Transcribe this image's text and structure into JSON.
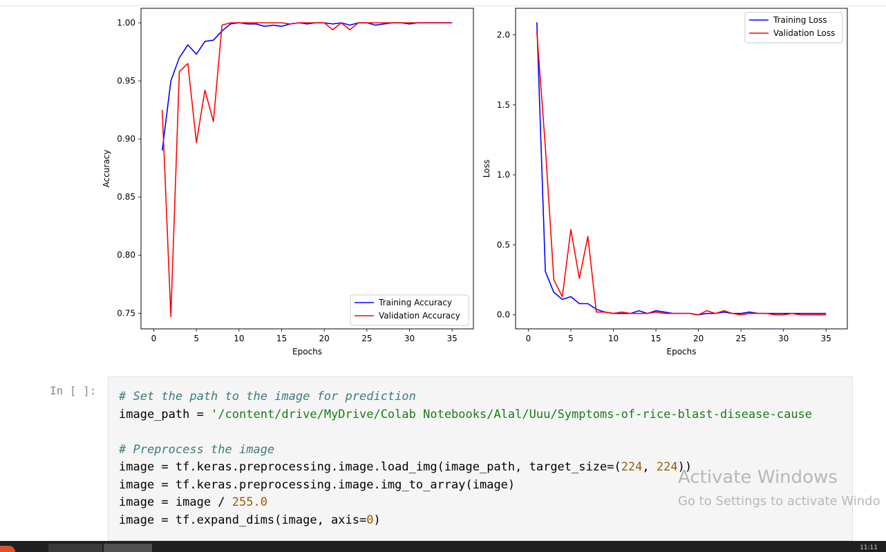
{
  "chart_data": [
    {
      "type": "line",
      "title": "",
      "xlabel": "Epochs",
      "ylabel": "Accuracy",
      "xlim": [
        -1.5,
        37.5
      ],
      "ylim": [
        0.7365,
        1.0125
      ],
      "xticks": [
        0,
        5,
        10,
        15,
        20,
        25,
        30,
        35
      ],
      "yticks": [
        0.75,
        0.8,
        0.85,
        0.9,
        0.95,
        1.0
      ],
      "ytick_labels": [
        "0.75",
        "0.80",
        "0.85",
        "0.90",
        "0.95",
        "1.00"
      ],
      "legend_position": "lower-right",
      "x": [
        1,
        2,
        3,
        4,
        5,
        6,
        7,
        8,
        9,
        10,
        11,
        12,
        13,
        14,
        15,
        16,
        17,
        18,
        19,
        20,
        21,
        22,
        23,
        24,
        25,
        26,
        27,
        28,
        29,
        30,
        31,
        32,
        33,
        34,
        35
      ],
      "series": [
        {
          "name": "Training Accuracy",
          "color": "#0000ff",
          "values": [
            0.89,
            0.95,
            0.97,
            0.981,
            0.973,
            0.984,
            0.985,
            0.993,
            0.999,
            1.0,
            0.999,
            0.999,
            0.997,
            0.998,
            0.997,
            0.999,
            1.0,
            0.999,
            1.0,
            1.0,
            0.999,
            1.0,
            0.998,
            1.0,
            1.0,
            0.998,
            0.999,
            1.0,
            1.0,
            0.999,
            1.0,
            1.0,
            1.0,
            1.0,
            1.0
          ]
        },
        {
          "name": "Validation Accuracy",
          "color": "#ff0000",
          "values": [
            0.925,
            0.747,
            0.958,
            0.965,
            0.897,
            0.942,
            0.915,
            0.998,
            1.0,
            1.0,
            1.0,
            1.0,
            1.0,
            1.0,
            1.0,
            0.999,
            1.0,
            1.0,
            1.0,
            1.0,
            0.994,
            1.0,
            0.994,
            1.0,
            1.0,
            1.0,
            1.0,
            1.0,
            1.0,
            1.0,
            1.0,
            1.0,
            1.0,
            1.0,
            1.0
          ]
        }
      ]
    },
    {
      "type": "line",
      "title": "",
      "xlabel": "Epochs",
      "ylabel": "Loss",
      "xlim": [
        -1.5,
        37.5
      ],
      "ylim": [
        -0.1,
        2.19
      ],
      "xticks": [
        0,
        5,
        10,
        15,
        20,
        25,
        30,
        35
      ],
      "yticks": [
        0.0,
        0.5,
        1.0,
        1.5,
        2.0
      ],
      "ytick_labels": [
        "0.0",
        "0.5",
        "1.0",
        "1.5",
        "2.0"
      ],
      "legend_position": "upper-right",
      "x": [
        1,
        2,
        3,
        4,
        5,
        6,
        7,
        8,
        9,
        10,
        11,
        12,
        13,
        14,
        15,
        16,
        17,
        18,
        19,
        20,
        21,
        22,
        23,
        24,
        25,
        26,
        27,
        28,
        29,
        30,
        31,
        32,
        33,
        34,
        35
      ],
      "series": [
        {
          "name": "Training Loss",
          "color": "#0000ff",
          "values": [
            2.09,
            0.31,
            0.16,
            0.11,
            0.13,
            0.08,
            0.08,
            0.04,
            0.02,
            0.01,
            0.01,
            0.01,
            0.03,
            0.01,
            0.03,
            0.02,
            0.01,
            0.01,
            0.01,
            0.0,
            0.01,
            0.01,
            0.02,
            0.01,
            0.01,
            0.02,
            0.01,
            0.01,
            0.01,
            0.01,
            0.01,
            0.01,
            0.01,
            0.01,
            0.01
          ]
        },
        {
          "name": "Validation Loss",
          "color": "#ff0000",
          "values": [
            2.02,
            1.2,
            0.25,
            0.13,
            0.61,
            0.26,
            0.56,
            0.02,
            0.02,
            0.01,
            0.02,
            0.01,
            0.01,
            0.01,
            0.02,
            0.01,
            0.01,
            0.01,
            0.01,
            0.0,
            0.03,
            0.01,
            0.03,
            0.01,
            0.0,
            0.01,
            0.01,
            0.01,
            0.0,
            0.0,
            0.01,
            0.0,
            0.0,
            0.0,
            0.0
          ]
        }
      ]
    }
  ],
  "cell": {
    "prompt": "In [ ]:",
    "lines": [
      {
        "parts": [
          {
            "t": "# Set the path to the image for prediction",
            "c": "cm"
          }
        ]
      },
      {
        "parts": [
          {
            "t": "image_path = ",
            "c": ""
          },
          {
            "t": "'/content/drive/MyDrive/Colab Notebooks/Alal/Uuu/Symptoms-of-rice-blast-disease-cause",
            "c": "st"
          }
        ]
      },
      {
        "parts": [
          {
            "t": "",
            "c": ""
          }
        ]
      },
      {
        "parts": [
          {
            "t": "# Preprocess the image",
            "c": "cm"
          }
        ]
      },
      {
        "parts": [
          {
            "t": "image = tf.keras.preprocessing.image.load_img(image_path, target_size=(",
            "c": ""
          },
          {
            "t": "224",
            "c": "nm"
          },
          {
            "t": ", ",
            "c": ""
          },
          {
            "t": "224",
            "c": "nm"
          },
          {
            "t": "))",
            "c": ""
          }
        ]
      },
      {
        "parts": [
          {
            "t": "image = tf.keras.preprocessing.image.img_to_array(image)",
            "c": ""
          }
        ]
      },
      {
        "parts": [
          {
            "t": "image = image / ",
            "c": ""
          },
          {
            "t": "255.0",
            "c": "nm"
          }
        ]
      },
      {
        "parts": [
          {
            "t": "image = tf.expand_dims(image, axis=",
            "c": ""
          },
          {
            "t": "0",
            "c": "nm"
          },
          {
            "t": ")",
            "c": ""
          }
        ]
      }
    ]
  },
  "watermark": {
    "title": "Activate Windows",
    "subtitle": "Go to Settings to activate Windo"
  },
  "taskbar": {
    "clock": "11:11"
  }
}
